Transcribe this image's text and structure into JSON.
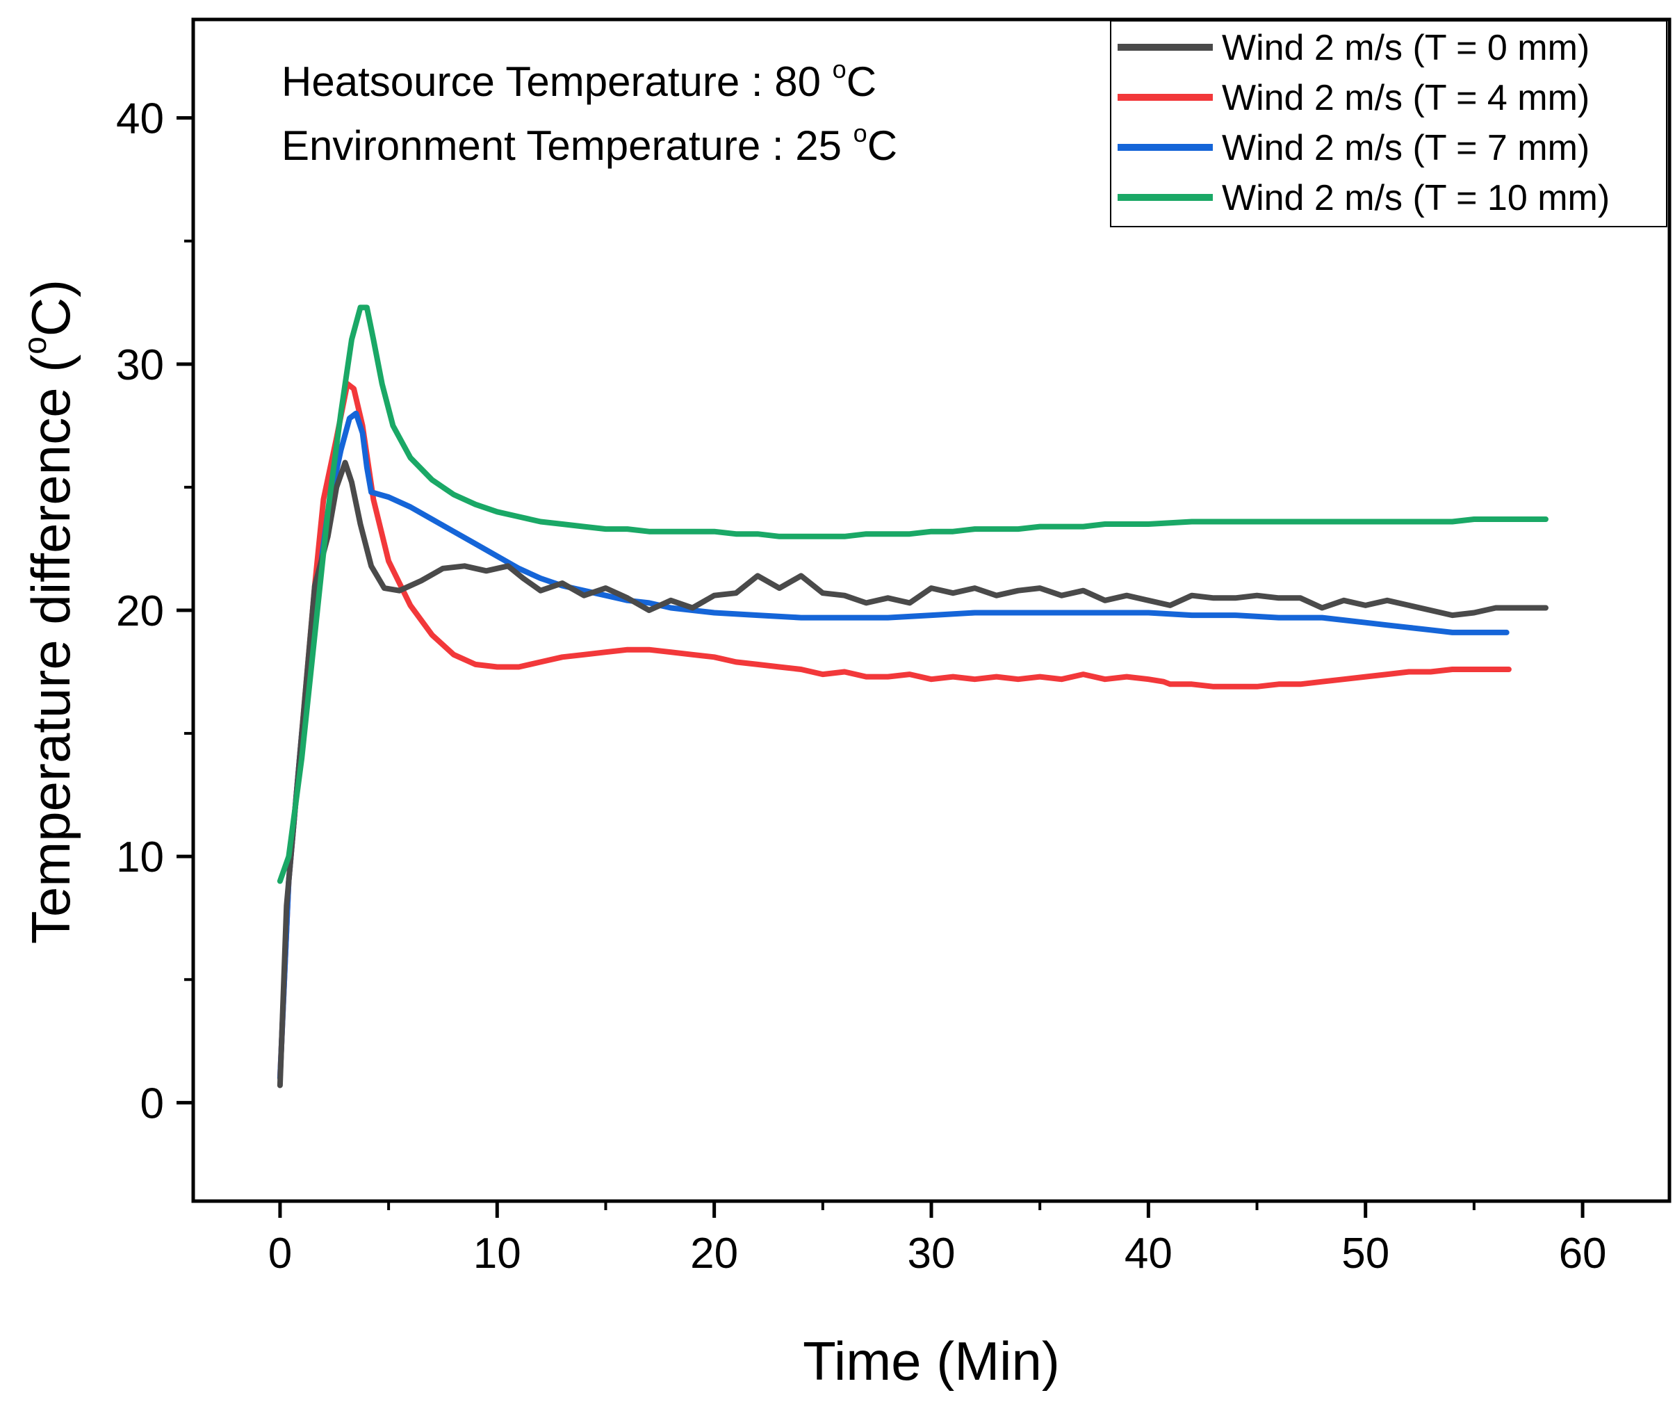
{
  "chart_data": {
    "type": "line",
    "title": "",
    "xlabel": "Time (Min)",
    "ylabel_main": "Temperature difference (",
    "ylabel_sup": "o",
    "ylabel_tail": "C)",
    "xlim": [
      -4,
      64
    ],
    "ylim": [
      -4,
      44
    ],
    "x_ticks": [
      0,
      10,
      20,
      30,
      40,
      50,
      60
    ],
    "x_tick_labels": [
      "0",
      "10",
      "20",
      "30",
      "40",
      "50",
      "60"
    ],
    "y_ticks": [
      0,
      10,
      20,
      30,
      40
    ],
    "y_tick_labels": [
      "0",
      "10",
      "20",
      "30",
      "40"
    ],
    "grid": false,
    "legend_position": "top-right",
    "annotations": [
      {
        "main": "Heatsource Temperature : 80 ",
        "sup": "o",
        "tail": "C"
      },
      {
        "main": "Environment Temperature : 25 ",
        "sup": "o",
        "tail": "C"
      }
    ],
    "series": [
      {
        "name": "Wind 2 m/s (T = 0 mm)",
        "color": "#4a4a4a",
        "x": [
          0,
          0.3,
          1,
          1.6,
          2.2,
          2.6,
          3.0,
          3.3,
          3.7,
          4.2,
          4.8,
          5.5,
          6.5,
          7.5,
          8.5,
          9.5,
          10.5,
          11.2,
          12,
          13,
          14,
          15,
          16,
          17,
          18,
          19,
          20,
          21,
          22,
          23,
          24,
          25,
          26,
          27,
          28,
          29,
          30,
          31,
          32,
          33,
          34,
          35,
          36,
          37,
          38,
          39,
          40,
          41,
          42,
          43,
          44,
          45,
          46,
          47,
          48,
          49,
          50,
          51,
          52,
          53,
          54,
          55,
          56,
          57,
          58.3
        ],
        "y": [
          0.7,
          8,
          15,
          21,
          23,
          25,
          26,
          25.2,
          23.5,
          21.8,
          20.9,
          20.8,
          21.2,
          21.7,
          21.8,
          21.6,
          21.8,
          21.3,
          20.8,
          21.1,
          20.6,
          20.9,
          20.5,
          20.0,
          20.4,
          20.1,
          20.6,
          20.7,
          21.4,
          20.9,
          21.4,
          20.7,
          20.6,
          20.3,
          20.5,
          20.3,
          20.9,
          20.7,
          20.9,
          20.6,
          20.8,
          20.9,
          20.6,
          20.8,
          20.4,
          20.6,
          20.4,
          20.2,
          20.6,
          20.5,
          20.5,
          20.6,
          20.5,
          20.5,
          20.1,
          20.4,
          20.2,
          20.4,
          20.2,
          20.0,
          19.8,
          19.9,
          20.1,
          20.1,
          20.1
        ]
      },
      {
        "name": "Wind 2 m/s (T = 4 mm)",
        "color": "#f2383a",
        "x": [
          0,
          0.4,
          1,
          1.6,
          2.0,
          2.6,
          3.1,
          3.4,
          3.8,
          4.3,
          5,
          6,
          7,
          8,
          9,
          10,
          11,
          12,
          13,
          14,
          15,
          16,
          17,
          18,
          19,
          20,
          21,
          22,
          23,
          24,
          25,
          26,
          27,
          28,
          29,
          30,
          31,
          32,
          33,
          34,
          35,
          36,
          37,
          38,
          39,
          40,
          40.7,
          41,
          42,
          43,
          44,
          45,
          46,
          47,
          48,
          49,
          50,
          51,
          52,
          53,
          54,
          55,
          56.6
        ],
        "y": [
          1,
          9,
          15,
          21,
          24.5,
          27,
          29.2,
          29.0,
          27.5,
          24.5,
          22.0,
          20.2,
          19.0,
          18.2,
          17.8,
          17.7,
          17.7,
          17.9,
          18.1,
          18.2,
          18.3,
          18.4,
          18.4,
          18.3,
          18.2,
          18.1,
          17.9,
          17.8,
          17.7,
          17.6,
          17.4,
          17.5,
          17.3,
          17.3,
          17.4,
          17.2,
          17.3,
          17.2,
          17.3,
          17.2,
          17.3,
          17.2,
          17.4,
          17.2,
          17.3,
          17.2,
          17.1,
          17.0,
          17.0,
          16.9,
          16.9,
          16.9,
          17.0,
          17.0,
          17.1,
          17.2,
          17.3,
          17.4,
          17.5,
          17.5,
          17.6,
          17.6,
          17.6
        ]
      },
      {
        "name": "Wind 2 m/s (T = 7 mm)",
        "color": "#1565d8",
        "x": [
          0,
          0.4,
          1,
          1.6,
          2.2,
          2.8,
          3.2,
          3.5,
          3.8,
          4.0,
          4.2,
          5,
          6,
          7,
          8,
          9,
          10,
          11,
          12,
          13,
          14,
          15,
          16,
          17,
          18,
          19,
          20,
          22,
          24,
          26,
          28,
          30,
          32,
          34,
          36,
          38,
          40,
          42,
          44,
          46,
          48,
          50,
          51,
          52,
          53,
          54,
          55,
          56.5
        ],
        "y": [
          1,
          9,
          15,
          20,
          24,
          26.5,
          27.8,
          28.0,
          27.2,
          25.8,
          24.8,
          24.6,
          24.2,
          23.7,
          23.2,
          22.7,
          22.2,
          21.7,
          21.3,
          21.0,
          20.8,
          20.6,
          20.4,
          20.3,
          20.1,
          20.0,
          19.9,
          19.8,
          19.7,
          19.7,
          19.7,
          19.8,
          19.9,
          19.9,
          19.9,
          19.9,
          19.9,
          19.8,
          19.8,
          19.7,
          19.7,
          19.5,
          19.4,
          19.3,
          19.2,
          19.1,
          19.1,
          19.1
        ]
      },
      {
        "name": "Wind 2 m/s (T = 10 mm)",
        "color": "#1aa866",
        "x": [
          0,
          0.4,
          1,
          1.6,
          2.2,
          2.8,
          3.3,
          3.7,
          4.0,
          4.3,
          4.7,
          5.2,
          6,
          7,
          8,
          9,
          10,
          11,
          12,
          13,
          14,
          15,
          16,
          17,
          18,
          19,
          20,
          21,
          22,
          23,
          24,
          25,
          26,
          27,
          28,
          29,
          30,
          31,
          32,
          33,
          34,
          35,
          36,
          37,
          38,
          39,
          40,
          42,
          44,
          46,
          48,
          50,
          52,
          54,
          55,
          56,
          58.3
        ],
        "y": [
          9,
          10,
          14,
          19,
          24,
          28,
          31,
          32.3,
          32.3,
          31,
          29.2,
          27.5,
          26.2,
          25.3,
          24.7,
          24.3,
          24.0,
          23.8,
          23.6,
          23.5,
          23.4,
          23.3,
          23.3,
          23.2,
          23.2,
          23.2,
          23.2,
          23.1,
          23.1,
          23.0,
          23.0,
          23.0,
          23.0,
          23.1,
          23.1,
          23.1,
          23.2,
          23.2,
          23.3,
          23.3,
          23.3,
          23.4,
          23.4,
          23.4,
          23.5,
          23.5,
          23.5,
          23.6,
          23.6,
          23.6,
          23.6,
          23.6,
          23.6,
          23.6,
          23.7,
          23.7,
          23.7
        ]
      }
    ]
  }
}
